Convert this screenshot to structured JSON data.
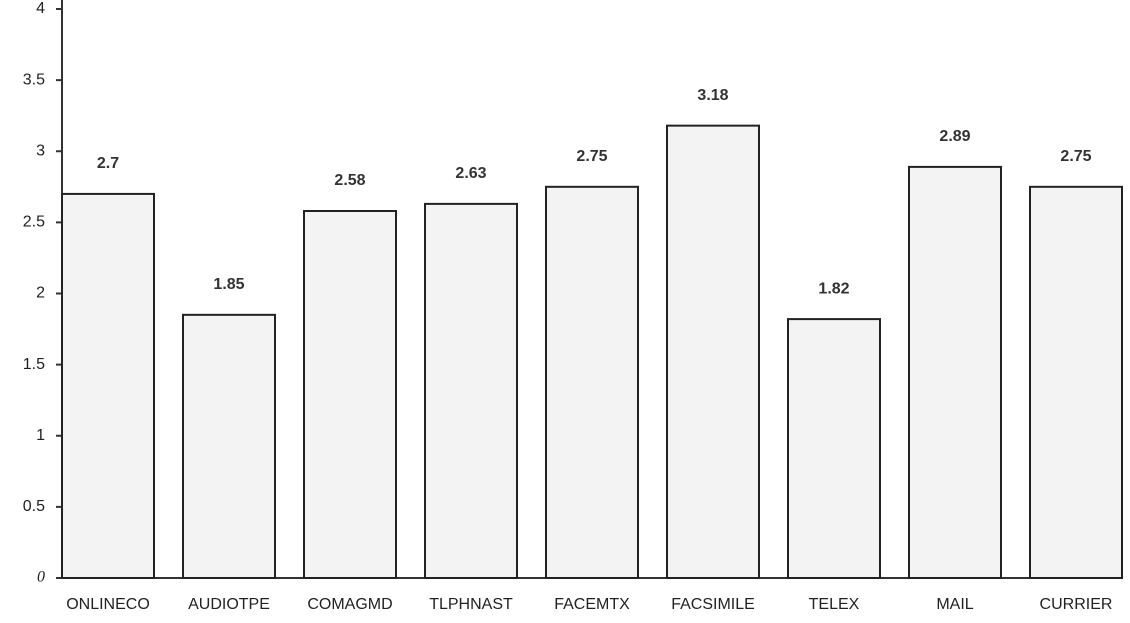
{
  "chart_data": {
    "type": "bar",
    "categories": [
      "ONLINECO",
      "AUDIOTPE",
      "COMAGMD",
      "TLPHNAST",
      "FACEMTX",
      "FACSIMILE",
      "TELEX",
      "MAIL",
      "CURRIER"
    ],
    "values": [
      2.7,
      1.85,
      2.58,
      2.63,
      2.75,
      3.18,
      1.82,
      2.89,
      2.75
    ],
    "color": "#f3f3f3",
    "ylim": [
      0,
      4
    ],
    "yticks": [
      0,
      0.5,
      1,
      1.5,
      2,
      2.5,
      3,
      3.5,
      4
    ],
    "grid": false
  }
}
